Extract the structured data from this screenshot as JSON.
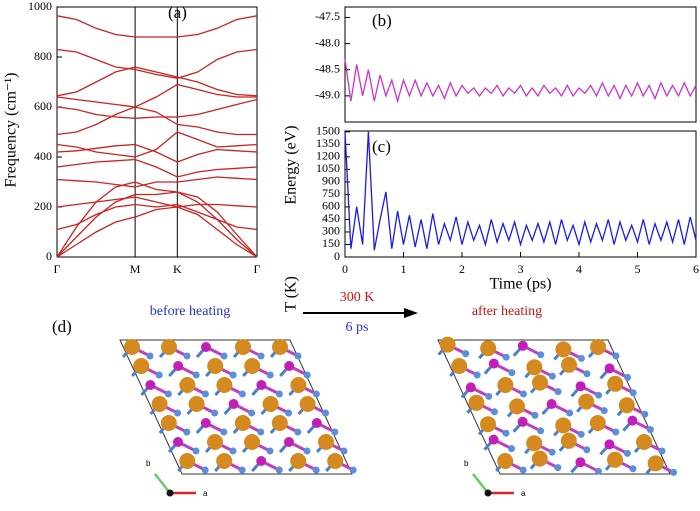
{
  "chart_data": [
    {
      "type": "line",
      "label": "(a)",
      "ylabel": "Frequency (cm⁻¹)",
      "x": [
        0,
        0.25,
        0.5,
        0.75,
        1,
        1.27,
        1.54,
        1.8,
        2.05,
        2.3,
        2.56
      ],
      "xlim": [
        0,
        2.56
      ],
      "xticks": [
        {
          "value": 0,
          "label": "Γ"
        },
        {
          "value": 1,
          "label": "M"
        },
        {
          "value": 1.54,
          "label": "K"
        },
        {
          "value": 2.56,
          "label": "Γ"
        }
      ],
      "ylim": [
        0,
        1000
      ],
      "yticks": [
        0,
        200,
        400,
        600,
        800,
        1000
      ],
      "series": [
        {
          "color": "#cc2222",
          "values": [
            965,
            950,
            915,
            890,
            880,
            880,
            880,
            890,
            915,
            950,
            965
          ]
        },
        {
          "color": "#cc2222",
          "values": [
            830,
            820,
            790,
            760,
            750,
            730,
            715,
            740,
            790,
            820,
            830
          ]
        },
        {
          "color": "#cc2222",
          "values": [
            645,
            660,
            700,
            740,
            760,
            740,
            720,
            700,
            670,
            650,
            645
          ]
        },
        {
          "color": "#cc2222",
          "values": [
            640,
            630,
            620,
            610,
            600,
            640,
            690,
            670,
            650,
            640,
            640
          ]
        },
        {
          "color": "#cc2222",
          "values": [
            600,
            590,
            570,
            560,
            555,
            560,
            560,
            570,
            590,
            610,
            630
          ]
        },
        {
          "color": "#cc2222",
          "values": [
            490,
            500,
            530,
            570,
            600,
            580,
            530,
            520,
            500,
            490,
            490
          ]
        },
        {
          "color": "#cc2222",
          "values": [
            450,
            440,
            420,
            410,
            400,
            430,
            500,
            470,
            440,
            445,
            450
          ]
        },
        {
          "color": "#cc2222",
          "values": [
            420,
            425,
            435,
            445,
            450,
            420,
            380,
            410,
            430,
            425,
            420
          ]
        },
        {
          "color": "#cc2222",
          "values": [
            360,
            370,
            380,
            385,
            390,
            360,
            320,
            340,
            350,
            355,
            360
          ]
        },
        {
          "color": "#cc2222",
          "values": [
            310,
            305,
            300,
            290,
            280,
            300,
            300,
            310,
            320,
            315,
            310
          ]
        },
        {
          "color": "#cc2222",
          "values": [
            200,
            210,
            220,
            230,
            240,
            220,
            200,
            210,
            210,
            205,
            200
          ]
        },
        {
          "color": "#cc2222",
          "values": [
            110,
            130,
            170,
            200,
            210,
            200,
            210,
            180,
            150,
            120,
            110
          ]
        },
        {
          "color": "#cc2222",
          "values": [
            0,
            120,
            220,
            280,
            300,
            270,
            260,
            240,
            180,
            90,
            0
          ]
        },
        {
          "color": "#cc2222",
          "values": [
            0,
            80,
            160,
            220,
            250,
            250,
            260,
            220,
            150,
            70,
            0
          ]
        },
        {
          "color": "#cc2222",
          "values": [
            0,
            50,
            100,
            140,
            160,
            190,
            200,
            170,
            110,
            50,
            0
          ]
        }
      ]
    },
    {
      "type": "line",
      "label": "(b)",
      "ylabel": "Energy (eV)",
      "x": [
        0,
        0.1,
        0.2,
        0.3,
        0.4,
        0.5,
        0.6,
        0.7,
        0.8,
        0.9,
        1,
        1.1,
        1.2,
        1.3,
        1.4,
        1.5,
        1.6,
        1.7,
        1.8,
        1.9,
        2,
        2.1,
        2.2,
        2.3,
        2.4,
        2.5,
        2.6,
        2.7,
        2.8,
        2.9,
        3,
        3.1,
        3.2,
        3.3,
        3.4,
        3.5,
        3.6,
        3.7,
        3.8,
        3.9,
        4,
        4.1,
        4.2,
        4.3,
        4.4,
        4.5,
        4.6,
        4.7,
        4.8,
        4.9,
        5,
        5.1,
        5.2,
        5.3,
        5.4,
        5.5,
        5.6,
        5.7,
        5.8,
        5.9,
        6
      ],
      "xlim": [
        0,
        6
      ],
      "ylim": [
        -49.5,
        -47.3
      ],
      "yticks": [
        {
          "value": -47.5,
          "label": "-47.5"
        },
        {
          "value": -48,
          "label": "-48.0"
        },
        {
          "value": -48.5,
          "label": "-48.5"
        },
        {
          "value": -49,
          "label": "-49.0"
        }
      ],
      "series": [
        {
          "color": "#cc33cc",
          "values": [
            -48.3,
            -49.1,
            -48.4,
            -49.0,
            -48.5,
            -49.1,
            -48.6,
            -49.0,
            -48.7,
            -49.1,
            -48.7,
            -49.0,
            -48.7,
            -49.0,
            -48.75,
            -49.0,
            -48.8,
            -49.05,
            -48.75,
            -49.0,
            -48.8,
            -48.95,
            -48.85,
            -49.0,
            -48.85,
            -48.95,
            -48.8,
            -49.0,
            -48.85,
            -48.95,
            -48.8,
            -49.0,
            -48.85,
            -49.0,
            -48.8,
            -48.95,
            -48.85,
            -49.0,
            -48.8,
            -49.0,
            -48.85,
            -48.95,
            -48.8,
            -49.0,
            -48.75,
            -49.0,
            -48.8,
            -49.05,
            -48.8,
            -49.0,
            -48.75,
            -49.0,
            -48.8,
            -49.05,
            -48.75,
            -49.0,
            -48.8,
            -49.0,
            -48.75,
            -49.0,
            -48.8
          ]
        }
      ]
    },
    {
      "type": "line",
      "label": "(c)",
      "ylabel": "T (K)",
      "xlabel": "Time (ps)",
      "x": [
        0,
        0.1,
        0.2,
        0.3,
        0.4,
        0.5,
        0.6,
        0.7,
        0.8,
        0.9,
        1,
        1.1,
        1.2,
        1.3,
        1.4,
        1.5,
        1.6,
        1.7,
        1.8,
        1.9,
        2,
        2.1,
        2.2,
        2.3,
        2.4,
        2.5,
        2.6,
        2.7,
        2.8,
        2.9,
        3,
        3.1,
        3.2,
        3.3,
        3.4,
        3.5,
        3.6,
        3.7,
        3.8,
        3.9,
        4,
        4.1,
        4.2,
        4.3,
        4.4,
        4.5,
        4.6,
        4.7,
        4.8,
        4.9,
        5,
        5.1,
        5.2,
        5.3,
        5.4,
        5.5,
        5.6,
        5.7,
        5.8,
        5.9,
        6
      ],
      "xlim": [
        0,
        6
      ],
      "xticks": [
        0,
        1,
        2,
        3,
        4,
        5,
        6
      ],
      "ylim": [
        0,
        1510
      ],
      "yticks": [
        0,
        150,
        300,
        450,
        600,
        750,
        900,
        1050,
        1200,
        1350,
        1500
      ],
      "series": [
        {
          "color": "#1a1aee",
          "values": [
            1500,
            100,
            600,
            150,
            1500,
            80,
            450,
            780,
            100,
            550,
            150,
            500,
            120,
            450,
            100,
            520,
            150,
            400,
            200,
            480,
            150,
            420,
            200,
            380,
            150,
            450,
            180,
            400,
            200,
            420,
            150,
            380,
            200,
            400,
            180,
            420,
            150,
            450,
            200,
            380,
            150,
            420,
            180,
            400,
            200,
            450,
            150,
            420,
            200,
            380,
            180,
            450,
            150,
            400,
            200,
            420,
            180,
            450,
            150,
            480,
            200
          ]
        }
      ]
    }
  ],
  "structure": {
    "label": "(d)",
    "before": "before heating",
    "after": "after heating",
    "temperature": "300 K",
    "duration": "6 ps",
    "axis_b": "b",
    "axis_a": "a"
  }
}
